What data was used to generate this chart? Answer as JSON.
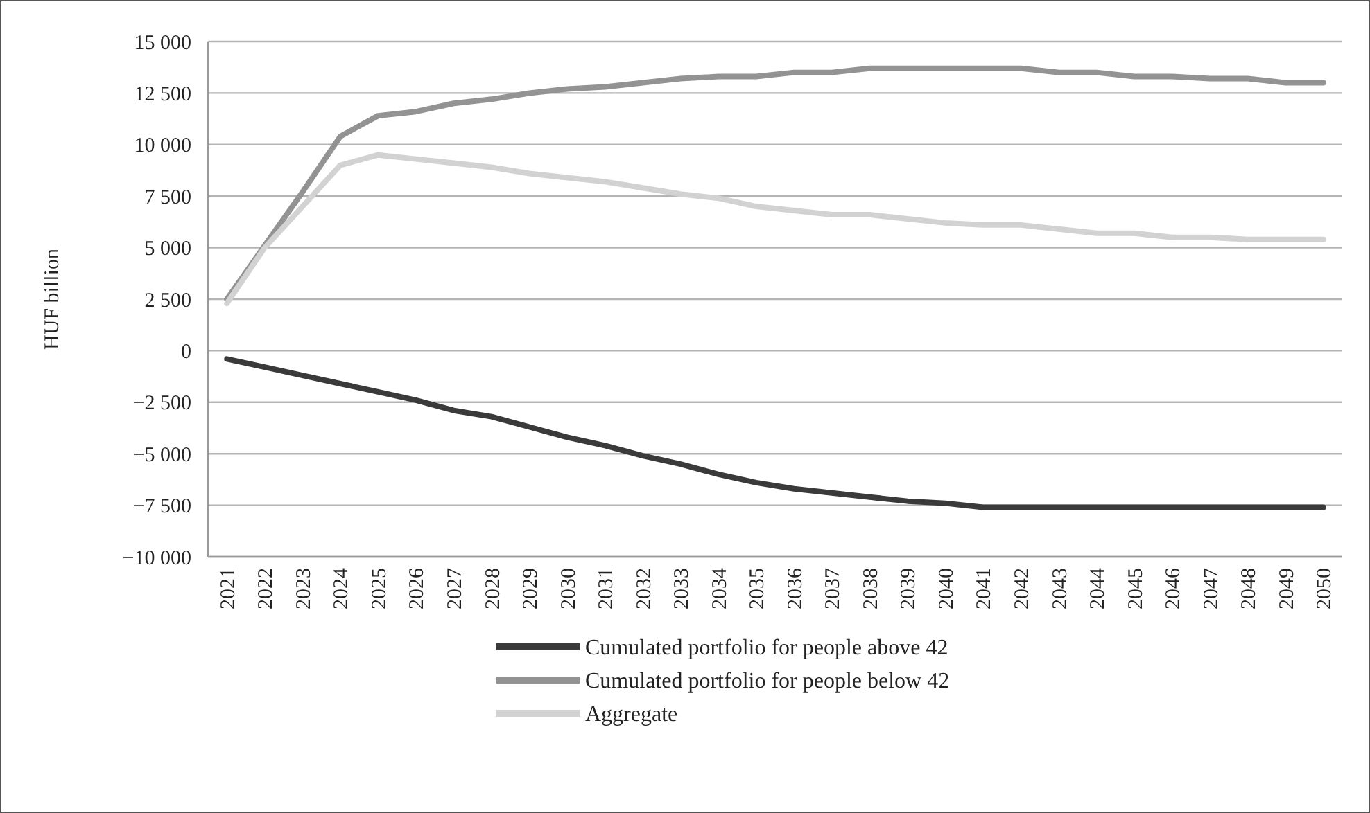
{
  "chart_data": {
    "type": "line",
    "ylabel": "HUF billion",
    "categories": [
      "2021",
      "2022",
      "2023",
      "2024",
      "2025",
      "2026",
      "2027",
      "2028",
      "2029",
      "2030",
      "2031",
      "2032",
      "2033",
      "2034",
      "2035",
      "2036",
      "2037",
      "2038",
      "2039",
      "2040",
      "2041",
      "2042",
      "2043",
      "2044",
      "2045",
      "2046",
      "2047",
      "2048",
      "2049",
      "2050"
    ],
    "series": [
      {
        "name": "Cumulated portfolio for people above 42",
        "color": "#3a3a3a",
        "values": [
          -400,
          -800,
          -1200,
          -1600,
          -2000,
          -2400,
          -2900,
          -3200,
          -3700,
          -4200,
          -4600,
          -5100,
          -5500,
          -6000,
          -6400,
          -6700,
          -6900,
          -7100,
          -7300,
          -7400,
          -7600,
          -7600,
          -7600,
          -7600,
          -7600,
          -7600,
          -7600,
          -7600,
          -7600,
          -7600
        ]
      },
      {
        "name": "Cumulated portfolio for people below 42",
        "color": "#939393",
        "values": [
          2500,
          5100,
          7700,
          10400,
          11400,
          11600,
          12000,
          12200,
          12500,
          12700,
          12800,
          13000,
          13200,
          13300,
          13300,
          13500,
          13500,
          13700,
          13700,
          13700,
          13700,
          13700,
          13500,
          13500,
          13300,
          13300,
          13200,
          13200,
          13000,
          13000
        ]
      },
      {
        "name": "Aggregate",
        "color": "#d2d2d2",
        "values": [
          2300,
          5000,
          7000,
          9000,
          9500,
          9300,
          9100,
          8900,
          8600,
          8400,
          8200,
          7900,
          7600,
          7400,
          7000,
          6800,
          6600,
          6600,
          6400,
          6200,
          6100,
          6100,
          5900,
          5700,
          5700,
          5500,
          5500,
          5400,
          5400,
          5400
        ]
      }
    ],
    "ylim": [
      -10000,
      15000
    ],
    "yticks": [
      {
        "value": -10000,
        "label": "−10 000"
      },
      {
        "value": -7500,
        "label": "−7 500"
      },
      {
        "value": -5000,
        "label": "−5 000"
      },
      {
        "value": -2500,
        "label": "−2 500"
      },
      0,
      {
        "value": 2500,
        "label": "2 500"
      },
      {
        "value": 5000,
        "label": "5 000"
      },
      {
        "value": 7500,
        "label": "7 500"
      },
      {
        "value": 10000,
        "label": "10 000"
      },
      {
        "value": 12500,
        "label": "12 500"
      },
      {
        "value": 15000,
        "label": "15 000"
      }
    ],
    "grid": "y",
    "legend": "bottom",
    "marker": "none",
    "line_style": "solid"
  }
}
